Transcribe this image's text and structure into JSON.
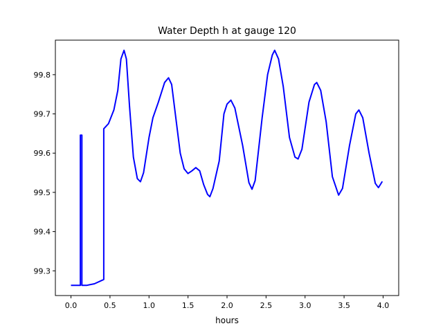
{
  "chart_data": {
    "type": "line",
    "title": "Water Depth h at gauge 120",
    "xlabel": "hours",
    "ylabel": "",
    "xlim": [
      -0.2,
      4.2
    ],
    "ylim": [
      99.237,
      99.888
    ],
    "xticks": [
      0.0,
      0.5,
      1.0,
      1.5,
      2.0,
      2.5,
      3.0,
      3.5,
      4.0
    ],
    "xtick_labels": [
      "0.0",
      "0.5",
      "1.0",
      "1.5",
      "2.0",
      "2.5",
      "3.0",
      "3.5",
      "4.0"
    ],
    "yticks": [
      99.3,
      99.4,
      99.5,
      99.6,
      99.7,
      99.8
    ],
    "ytick_labels": [
      "99.3",
      "99.4",
      "99.5",
      "99.6",
      "99.7",
      "99.8"
    ],
    "grid": false,
    "series": [
      {
        "name": "h",
        "color": "#0000ff",
        "x": [
          0,
          0.12,
          0.12,
          0.14,
          0.14,
          0.2,
          0.3,
          0.42,
          0.42,
          0.48,
          0.55,
          0.6,
          0.64,
          0.68,
          0.71,
          0.75,
          0.8,
          0.85,
          0.89,
          0.93,
          1.0,
          1.05,
          1.12,
          1.2,
          1.25,
          1.29,
          1.35,
          1.4,
          1.45,
          1.5,
          1.55,
          1.6,
          1.65,
          1.7,
          1.75,
          1.78,
          1.82,
          1.9,
          1.96,
          2.0,
          2.05,
          2.1,
          2.2,
          2.28,
          2.32,
          2.36,
          2.45,
          2.52,
          2.58,
          2.61,
          2.66,
          2.72,
          2.8,
          2.87,
          2.91,
          2.96,
          3.05,
          3.12,
          3.15,
          3.2,
          3.27,
          3.35,
          3.43,
          3.48,
          3.57,
          3.65,
          3.69,
          3.74,
          3.82,
          3.9,
          3.94,
          3.99
        ],
        "y": [
          99.263,
          99.263,
          99.646,
          99.646,
          99.263,
          99.263,
          99.267,
          99.278,
          99.662,
          99.675,
          99.71,
          99.76,
          99.84,
          99.862,
          99.84,
          99.72,
          99.59,
          99.535,
          99.527,
          99.55,
          99.64,
          99.69,
          99.73,
          99.78,
          99.792,
          99.775,
          99.68,
          99.6,
          99.56,
          99.548,
          99.555,
          99.563,
          99.555,
          99.52,
          99.495,
          99.489,
          99.51,
          99.58,
          99.7,
          99.725,
          99.735,
          99.715,
          99.62,
          99.525,
          99.508,
          99.53,
          99.69,
          99.8,
          99.85,
          99.862,
          99.84,
          99.77,
          99.64,
          99.59,
          99.585,
          99.61,
          99.73,
          99.775,
          99.78,
          99.76,
          99.68,
          99.54,
          99.493,
          99.51,
          99.62,
          99.7,
          99.71,
          99.69,
          99.6,
          99.523,
          99.512,
          99.528
        ]
      }
    ]
  }
}
